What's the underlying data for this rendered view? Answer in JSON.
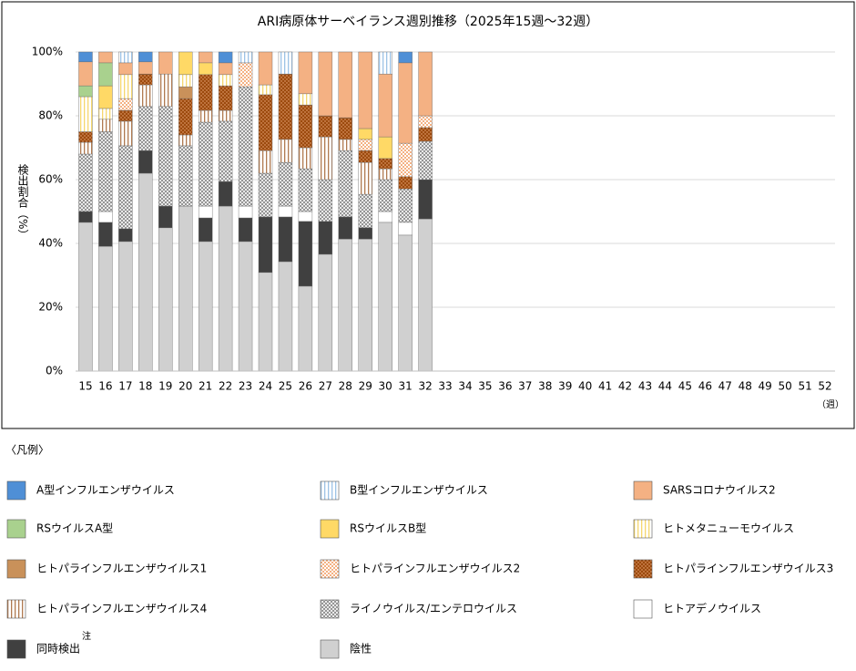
{
  "chart_data": {
    "type": "stacked-bar-100",
    "title": "ARI病原体サーベイランス週別推移（2025年15週～32週）",
    "y_label": "検出割合（%）",
    "x_unit": "（週）",
    "legend_title": "〈凡例〉",
    "legend_note": "注",
    "categories": [
      "15",
      "16",
      "17",
      "18",
      "19",
      "20",
      "21",
      "22",
      "23",
      "24",
      "25",
      "26",
      "27",
      "28",
      "29",
      "30",
      "31",
      "32",
      "33",
      "34",
      "35",
      "36",
      "37",
      "38",
      "39",
      "40",
      "41",
      "42",
      "43",
      "44",
      "45",
      "46",
      "47",
      "48",
      "49",
      "50",
      "51",
      "52"
    ],
    "ylim": [
      0,
      100
    ],
    "yticks": [
      {
        "value": 0,
        "label": "0%"
      },
      {
        "value": 20,
        "label": "20%"
      },
      {
        "value": 40,
        "label": "40%"
      },
      {
        "value": 60,
        "label": "60%"
      },
      {
        "value": 80,
        "label": "80%"
      },
      {
        "value": 100,
        "label": "100%"
      }
    ],
    "grid": true,
    "series": [
      {
        "name": "A型インフルエンザウイルス",
        "color": "#4f8fd6",
        "pattern": "solid",
        "values": [
          3.1,
          0,
          0,
          3.1,
          0,
          0,
          0,
          3.4,
          0,
          0,
          0,
          0,
          0,
          0,
          0,
          0,
          3.4,
          0,
          null,
          null,
          null,
          null,
          null,
          null,
          null,
          null,
          null,
          null,
          null,
          null,
          null,
          null,
          null,
          null,
          null,
          null,
          null,
          null
        ]
      },
      {
        "name": "B型インフルエンザウイルス",
        "color": "#9dc3e6",
        "pattern": "vertical-lines",
        "values": [
          0,
          0,
          3.4,
          0,
          0,
          0,
          0,
          0,
          3.4,
          0,
          6.9,
          0,
          0,
          0,
          0,
          6.9,
          0,
          0,
          null,
          null,
          null,
          null,
          null,
          null,
          null,
          null,
          null,
          null,
          null,
          null,
          null,
          null,
          null,
          null,
          null,
          null,
          null,
          null
        ]
      },
      {
        "name": "SARSコロナウイルス2",
        "color": "#f4b183",
        "pattern": "solid",
        "values": [
          7.5,
          3.4,
          3.7,
          3.8,
          6.9,
          0,
          3.4,
          3.7,
          0,
          10.3,
          0,
          13.1,
          20,
          20.6,
          24,
          19.7,
          25.2,
          20,
          null,
          null,
          null,
          null,
          null,
          null,
          null,
          null,
          null,
          null,
          null,
          null,
          null,
          null,
          null,
          null,
          null,
          null,
          null,
          null
        ]
      },
      {
        "name": "RSウイルスA型",
        "color": "#a9d18e",
        "pattern": "solid",
        "values": [
          3.4,
          7.2,
          0,
          0,
          0,
          0,
          0,
          0,
          0,
          0,
          0,
          0,
          0,
          0,
          0,
          0,
          0,
          0,
          null,
          null,
          null,
          null,
          null,
          null,
          null,
          null,
          null,
          null,
          null,
          null,
          null,
          null,
          null,
          null,
          null,
          null,
          null,
          null
        ]
      },
      {
        "name": "RSウイルスB型",
        "color": "#ffd966",
        "pattern": "solid",
        "values": [
          0,
          7.1,
          0,
          0,
          0,
          7.1,
          3.7,
          0,
          0,
          0,
          0,
          0,
          0,
          0,
          3.4,
          6.8,
          0,
          0,
          null,
          null,
          null,
          null,
          null,
          null,
          null,
          null,
          null,
          null,
          null,
          null,
          null,
          null,
          null,
          null,
          null,
          null,
          null,
          null
        ]
      },
      {
        "name": "ヒトメタニューモウイルス",
        "color": "#f5d76e",
        "pattern": "vertical-lines",
        "values": [
          11,
          3.4,
          7.5,
          0,
          0,
          3.8,
          0,
          3.5,
          0,
          3.1,
          0,
          3.5,
          0,
          0,
          0,
          0,
          0,
          0,
          null,
          null,
          null,
          null,
          null,
          null,
          null,
          null,
          null,
          null,
          null,
          null,
          null,
          null,
          null,
          null,
          null,
          null,
          null,
          null
        ]
      },
      {
        "name": "ヒトパラインフルエンザウイルス1",
        "color": "#c9915a",
        "pattern": "solid",
        "values": [
          0,
          0,
          0,
          0,
          0,
          3.7,
          0,
          0,
          0,
          0,
          0,
          0,
          0,
          0,
          0,
          0,
          0,
          0,
          null,
          null,
          null,
          null,
          null,
          null,
          null,
          null,
          null,
          null,
          null,
          null,
          null,
          null,
          null,
          null,
          null,
          null,
          null,
          null
        ]
      },
      {
        "name": "ヒトパラインフルエンザウイルス2",
        "color": "#f4b183",
        "pattern": "checker",
        "values": [
          0,
          0,
          3.7,
          0,
          0,
          0,
          0,
          0,
          7.5,
          0,
          0,
          0,
          0,
          0,
          3.5,
          0,
          10.5,
          3.7,
          null,
          null,
          null,
          null,
          null,
          null,
          null,
          null,
          null,
          null,
          null,
          null,
          null,
          null,
          null,
          null,
          null,
          null,
          null,
          null
        ]
      },
      {
        "name": "ヒトパラインフルエンザウイルス3",
        "color": "#9c4a0e",
        "pattern": "dots",
        "values": [
          3.3,
          0,
          3.4,
          3.4,
          0,
          11.4,
          11.2,
          7.7,
          0,
          17.5,
          20.5,
          13.4,
          6.6,
          6.8,
          3.7,
          3.2,
          3.8,
          4.3,
          null,
          null,
          null,
          null,
          null,
          null,
          null,
          null,
          null,
          null,
          null,
          null,
          null,
          null,
          null,
          null,
          null,
          null,
          null,
          null
        ]
      },
      {
        "name": "ヒトパラインフルエンザウイルス4",
        "color": "#b07a50",
        "pattern": "vertical-lines",
        "values": [
          3.7,
          3.9,
          7.7,
          6.8,
          10.2,
          3.4,
          3.7,
          3.4,
          0,
          7.1,
          7.2,
          6.6,
          13.4,
          3.5,
          10,
          3.4,
          0,
          0,
          null,
          null,
          null,
          null,
          null,
          null,
          null,
          null,
          null,
          null,
          null,
          null,
          null,
          null,
          null,
          null,
          null,
          null,
          null,
          null
        ]
      },
      {
        "name": "ライノウイルス/エンテロウイルス",
        "color": "#808080",
        "pattern": "cross-hatch",
        "values": [
          18,
          25,
          26,
          13.8,
          31.2,
          18.9,
          26.3,
          18.9,
          37.4,
          13.7,
          13.7,
          13.4,
          13.1,
          20.8,
          10.5,
          10,
          10.5,
          12,
          null,
          null,
          null,
          null,
          null,
          null,
          null,
          null,
          null,
          null,
          null,
          null,
          null,
          null,
          null,
          null,
          null,
          null,
          null,
          null
        ]
      },
      {
        "name": "ヒトアデノウイルス",
        "color": "#ffffff",
        "pattern": "solid",
        "values": [
          0,
          3.4,
          0,
          0,
          0,
          0,
          3.7,
          0,
          3.7,
          0,
          3.4,
          3.1,
          0,
          0,
          0,
          3.4,
          4,
          0,
          null,
          null,
          null,
          null,
          null,
          null,
          null,
          null,
          null,
          null,
          null,
          null,
          null,
          null,
          null,
          null,
          null,
          null,
          null,
          null
        ]
      },
      {
        "name": "同時検出",
        "color": "#404040",
        "pattern": "solid",
        "values": [
          3.4,
          7.5,
          4,
          7.1,
          6.8,
          0,
          7.4,
          7.7,
          7.4,
          17.4,
          14,
          20.3,
          10.3,
          6.9,
          3.5,
          0,
          0,
          12.3,
          null,
          null,
          null,
          null,
          null,
          null,
          null,
          null,
          null,
          null,
          null,
          null,
          null,
          null,
          null,
          null,
          null,
          null,
          null,
          null
        ]
      },
      {
        "name": "陰性",
        "color": "#d0d0d0",
        "pattern": "solid",
        "values": [
          46.6,
          39.1,
          40.6,
          62,
          44.9,
          51.7,
          40.6,
          51.7,
          40.6,
          30.9,
          34.3,
          26.6,
          36.6,
          41.4,
          41.4,
          46.6,
          42.6,
          47.7,
          null,
          null,
          null,
          null,
          null,
          null,
          null,
          null,
          null,
          null,
          null,
          null,
          null,
          null,
          null,
          null,
          null,
          null,
          null,
          null
        ]
      }
    ]
  }
}
